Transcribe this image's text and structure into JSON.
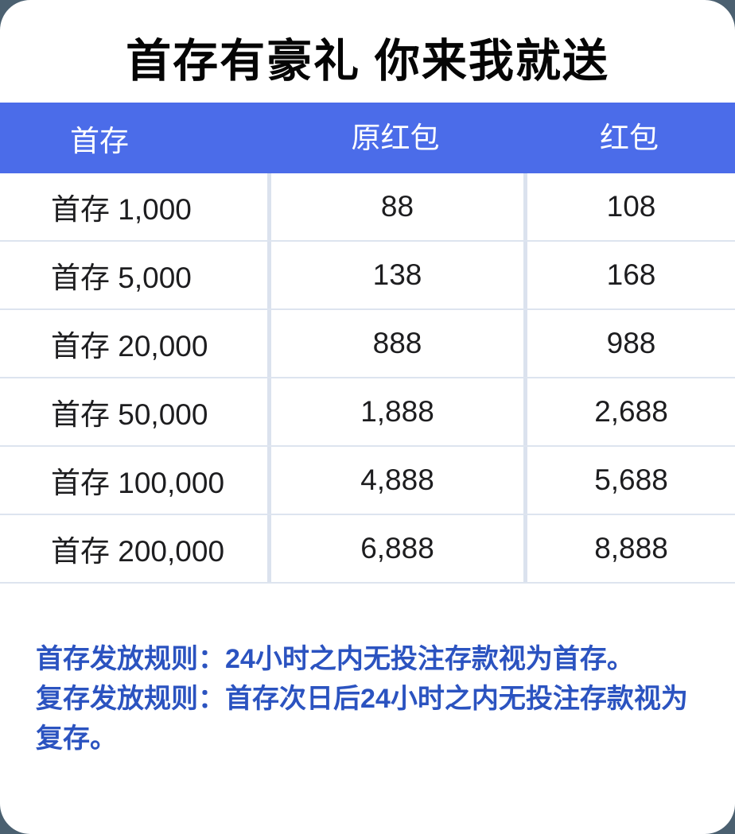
{
  "page": {
    "background_color": "#4b6070",
    "card_background_color": "#ffffff"
  },
  "title": "首存有豪礼 你来我就送",
  "table": {
    "header_background_color": "#4b6ce9",
    "header_text_color": "#ffffff",
    "border_color": "#dbe2ee",
    "columns": [
      "首存",
      "原红包",
      "红包"
    ],
    "rows": [
      {
        "deposit": "首存 1,000",
        "original": "88",
        "bonus": "108"
      },
      {
        "deposit": "首存 5,000",
        "original": "138",
        "bonus": "168"
      },
      {
        "deposit": "首存 20,000",
        "original": "888",
        "bonus": "988"
      },
      {
        "deposit": "首存 50,000",
        "original": "1,888",
        "bonus": "2,688"
      },
      {
        "deposit": "首存 100,000",
        "original": "4,888",
        "bonus": "5,688"
      },
      {
        "deposit": "首存 200,000",
        "original": "6,888",
        "bonus": "8,888"
      }
    ]
  },
  "rules": {
    "text_color": "#2b53c0",
    "first_deposit": "首存发放规则：24小时之内无投注存款视为首存。",
    "repeat_deposit": "复存发放规则：首存次日后24小时之内无投注存款视为复存。"
  }
}
